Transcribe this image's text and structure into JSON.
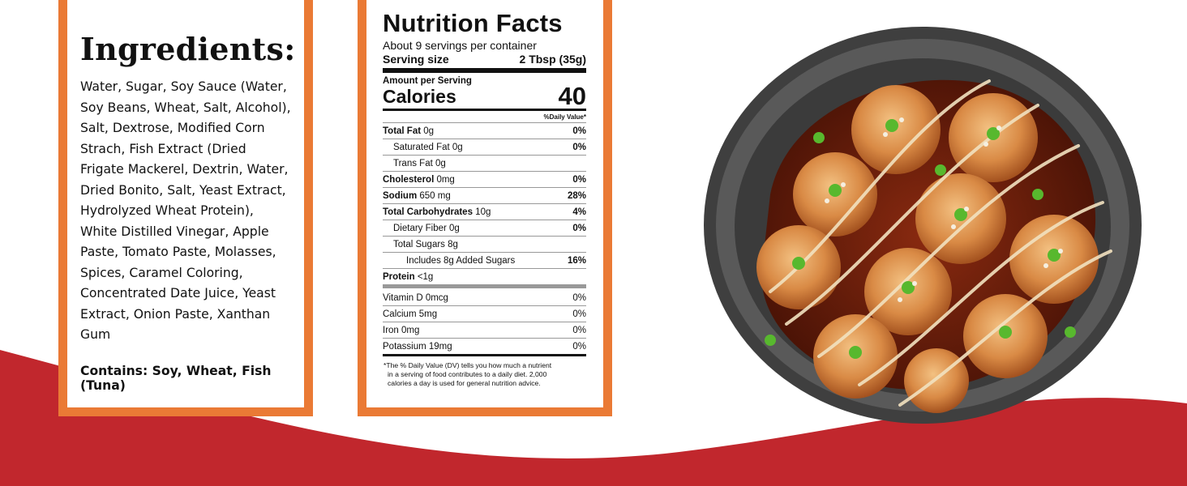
{
  "ingredients": {
    "title": "Ingredients:",
    "text": "Water, Sugar, Soy Sauce (Water, Soy Beans, Wheat, Salt, Alcohol), Salt, Dextrose, Modified Corn Strach, Fish Extract (Dried Frigate Mackerel, Dextrin, Water, Dried Bonito, Salt, Yeast Extract, Hydrolyzed Wheat Protein), White Distilled Vinegar, Apple Paste, Tomato Paste, Molasses, Spices, Caramel Coloring, Concentrated Date Juice, Yeast Extract, Onion Paste, Xanthan Gum",
    "contains": "Contains: Soy, Wheat, Fish (Tuna)"
  },
  "nutrition": {
    "title": "Nutrition Facts",
    "servings_per_container": "About 9 servings per container",
    "serving_size_label": "Serving size",
    "serving_size_value": "2 Tbsp (35g)",
    "amount_per_serving": "Amount per Serving",
    "calories_label": "Calories",
    "calories_value": "40",
    "daily_value_header": "%Daily Value*",
    "nutrients": [
      {
        "name": "Total Fat",
        "amount": " 0g",
        "dv": "0%"
      },
      {
        "name": "Saturated Fat 0g",
        "amount": "",
        "dv": "0%"
      },
      {
        "name": "Trans Fat 0g",
        "amount": "",
        "dv": ""
      },
      {
        "name": "Cholesterol",
        "amount": " 0mg",
        "dv": "0%"
      },
      {
        "name": "Sodium",
        "amount": " 650 mg",
        "dv": "28%"
      },
      {
        "name": "Total Carbohydrates",
        "amount": " 10g",
        "dv": "4%"
      },
      {
        "name": "Dietary Fiber 0g",
        "amount": "",
        "dv": "0%"
      },
      {
        "name": "Total Sugars 8g",
        "amount": "",
        "dv": ""
      },
      {
        "name": "Includes 8g Added Sugars",
        "amount": "",
        "dv": "16%"
      },
      {
        "name": "Protein",
        "amount": " <1g",
        "dv": ""
      }
    ],
    "vitamins": [
      {
        "name": "Vitamin D 0mcg",
        "dv": "0%"
      },
      {
        "name": "Calcium 5mg",
        "dv": "0%"
      },
      {
        "name": "Iron 0mg",
        "dv": "0%"
      },
      {
        "name": "Potassium 19mg",
        "dv": "0%"
      }
    ],
    "footnote_line1": "*The % Daily Value (DV) tells you how much a nutrient",
    "footnote_line2": "in a serving of food contributes to a daily diet. 2,000",
    "footnote_line3": "calories a day is used for general nutrition advice."
  },
  "colors": {
    "accent_orange": "#ea7a35",
    "wave_red": "#c1272d"
  },
  "image": {
    "subject": "takoyaki-plate-icon"
  }
}
